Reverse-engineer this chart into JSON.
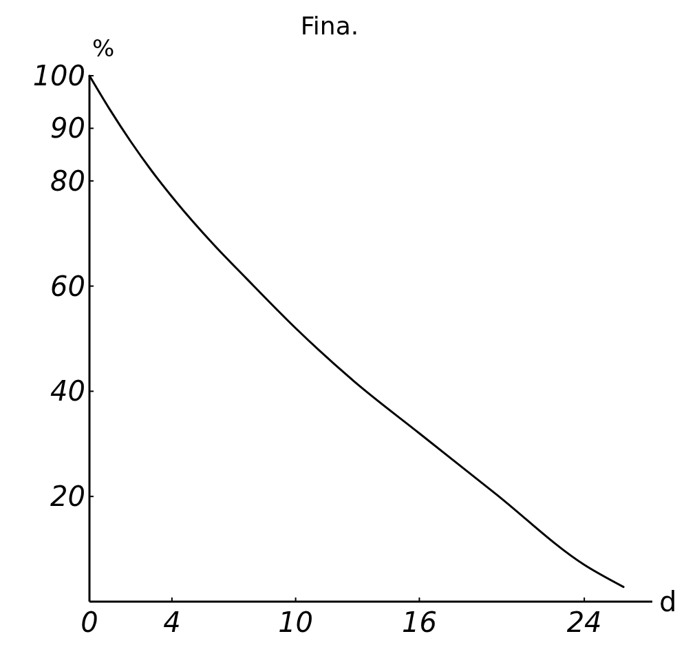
{
  "chart_data": {
    "type": "line",
    "title": "Fina.",
    "xlabel": "d",
    "ylabel": "%",
    "x": [
      0,
      1,
      2,
      3,
      4,
      6,
      7.6,
      10,
      12.8,
      16,
      19.7,
      24,
      25.9
    ],
    "series": [
      {
        "color": "#000000",
        "values": [
          100,
          93.5,
          87.5,
          82,
          77,
          68,
          61.5,
          52,
          42,
          32,
          20.5,
          7,
          2.8
        ]
      }
    ],
    "xlim": [
      0,
      27.3
    ],
    "ylim": [
      0,
      100
    ],
    "xticks": [
      0,
      4,
      10,
      16,
      24
    ],
    "yticks": [
      20,
      40,
      60,
      80,
      90,
      100
    ],
    "grid": false,
    "marker": "none",
    "line_style": "solid"
  }
}
